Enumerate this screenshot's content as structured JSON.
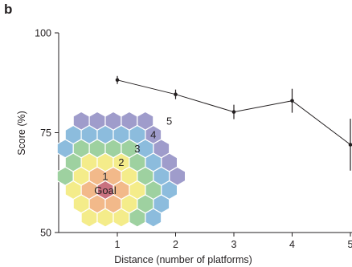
{
  "panel_label": "b",
  "colors": {
    "line": "#231f20",
    "axis": "#231f20",
    "ring0": "#c9717f",
    "ring1": "#f2b98a",
    "ring2": "#f4ec8a",
    "ring3": "#9ed1a0",
    "ring4": "#8cbcdd",
    "ring5": "#9f9ccb"
  },
  "chart_data": {
    "type": "line",
    "title": "",
    "xlabel": "Distance (number of platforms)",
    "ylabel": "Score (%)",
    "x": [
      1,
      2,
      3,
      4,
      5
    ],
    "xticks": [
      "1",
      "2",
      "3",
      "4",
      "5"
    ],
    "yticks": [
      "50",
      "75",
      "100"
    ],
    "ylim": [
      50,
      100
    ],
    "grid": false,
    "series": [
      {
        "values": [
          88.2,
          84.6,
          80.2,
          83.0,
          72.0
        ],
        "errors": [
          1.0,
          1.2,
          1.8,
          3.0,
          6.5
        ]
      }
    ]
  },
  "inset": {
    "goal_label": "Goal",
    "ring_labels": [
      "1",
      "2",
      "3",
      "4",
      "5"
    ]
  }
}
